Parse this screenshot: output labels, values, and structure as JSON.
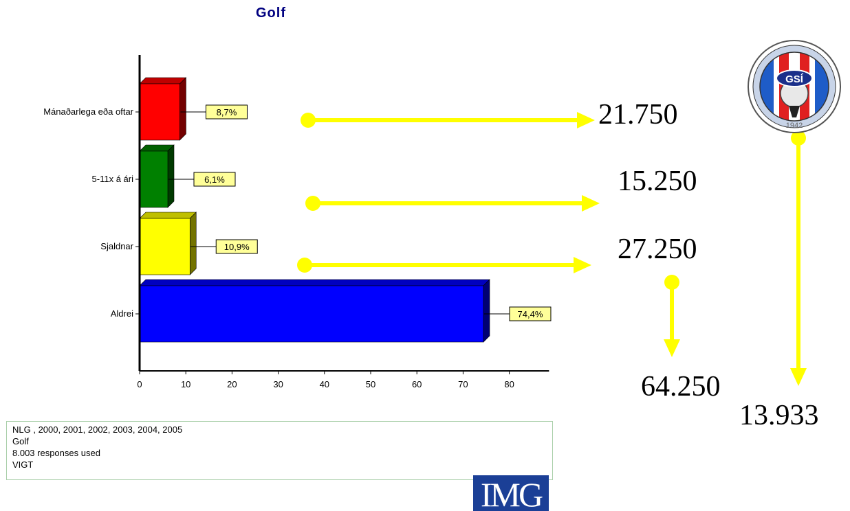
{
  "chart_data": {
    "type": "bar",
    "orientation": "horizontal",
    "title": "Golf",
    "categories": [
      "Mánaðarlega eða oftar",
      "5-11x á ári",
      "Sjaldnar",
      "Aldrei"
    ],
    "values": [
      8.7,
      6.1,
      10.9,
      74.4
    ],
    "data_labels": [
      "8,7%",
      "6,1%",
      "10,9%",
      "74,4%"
    ],
    "colors": [
      "#ff0000",
      "#008000",
      "#ffff00",
      "#0000ff"
    ],
    "xlim": [
      0,
      88
    ],
    "xticks": [
      0,
      10,
      20,
      30,
      40,
      50,
      60,
      70,
      80
    ],
    "grid": false,
    "legend": "none",
    "xlabel": "",
    "ylabel": ""
  },
  "annotations": {
    "numbers": [
      "21.750",
      "15.250",
      "27.250",
      "64.250",
      "13.933"
    ],
    "arrow_color": "#ffff00"
  },
  "info_box": {
    "lines": [
      "NLG , 2000, 2001, 2002, 2003, 2004, 2005",
      "Golf",
      "8.003 responses used",
      "VIGT"
    ]
  },
  "logos": {
    "img_text": "IMG",
    "gsi_text": "GSÍ",
    "gsi_year": "1942"
  }
}
